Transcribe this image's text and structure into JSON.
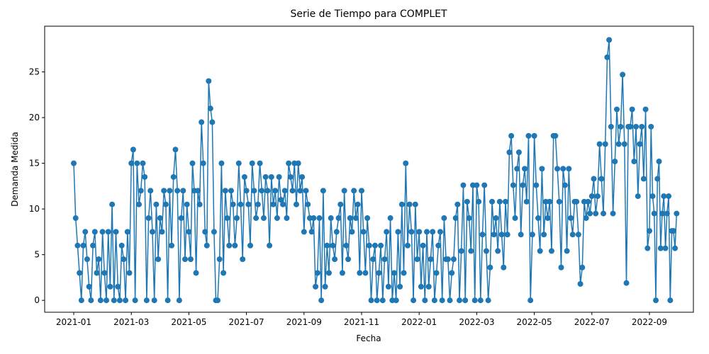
{
  "chart_data": {
    "type": "line",
    "title": "Serie de Tiempo para COMPLET",
    "x_label": "Fecha",
    "y_label": "Demanda Medida",
    "color": "#1f77b4",
    "ylim": [
      -1.3,
      30
    ],
    "yticks": [
      0,
      5,
      10,
      15,
      20,
      25
    ],
    "xticks": [
      "2021-01",
      "2021-03",
      "2021-05",
      "2021-07",
      "2021-09",
      "2021-11",
      "2022-01",
      "2022-03",
      "2022-05",
      "2022-07",
      "2022-09"
    ],
    "x": [
      "2021-01",
      "2021-02",
      "2021-03",
      "2021-04",
      "2021-05",
      "2021-06",
      "2021-07",
      "2021-08",
      "2021-09",
      "2021-10",
      "2021-11",
      "2021-12",
      "2022-01",
      "2022-02",
      "2022-03",
      "2022-04",
      "2022-05",
      "2022-06",
      "2022-07",
      "2022-08",
      "2022-09"
    ],
    "values": [
      [
        15,
        9,
        6,
        3,
        0,
        6,
        7.5,
        4.5,
        1.5,
        0,
        6,
        7.5,
        3,
        4.5,
        0
      ],
      [
        7.5,
        3,
        0,
        7.5,
        1.5,
        10.5,
        0,
        7.5,
        1.5,
        0,
        6,
        4.5,
        0,
        7.5,
        3
      ],
      [
        15,
        16.5,
        0,
        15,
        10.5,
        12,
        15,
        13.5,
        0,
        9,
        12,
        7.5,
        0,
        10.5,
        4.5
      ],
      [
        9,
        7.5,
        12,
        10.5,
        0,
        12,
        6,
        13.5,
        16.5,
        12,
        0,
        9,
        12,
        4.5,
        10.5
      ],
      [
        7.5,
        4.5,
        15,
        12,
        3,
        12,
        10.5,
        19.5,
        15,
        7.5,
        6,
        24,
        21,
        19.5,
        7.5,
        0
      ],
      [
        0,
        4.5,
        15,
        3,
        12,
        9,
        6,
        12,
        10.5,
        6,
        9,
        15,
        10.5,
        4.5,
        13.5
      ],
      [
        12,
        10.5,
        6,
        15,
        12,
        9,
        10.5,
        15,
        12,
        9,
        13.5,
        12,
        6,
        13.5,
        10.5
      ],
      [
        12,
        9,
        13.5,
        11,
        10.5,
        12,
        9,
        15,
        13.5,
        12,
        15,
        10.5,
        15,
        12,
        13.5
      ],
      [
        7.5,
        12,
        10.5,
        9,
        7.5,
        9,
        1.5,
        3,
        9,
        0,
        12,
        1.5,
        6,
        3,
        9
      ],
      [
        6,
        4.5,
        7.5,
        9,
        10.5,
        3,
        12,
        6,
        4.5,
        9,
        7.5,
        12,
        9,
        10.5,
        3
      ],
      [
        12,
        7.5,
        3,
        9,
        6,
        0,
        4.5,
        6,
        0,
        3,
        6,
        0,
        4.5,
        7.5,
        1.5
      ],
      [
        9,
        0,
        3,
        0,
        7.5,
        1.5,
        10.5,
        3,
        15,
        6,
        10.5,
        7.5,
        0,
        10.5,
        4.5
      ],
      [
        7.5,
        1.5,
        6,
        0,
        7.5,
        1.5,
        4.5,
        7.5,
        0,
        3,
        6,
        7.5,
        0,
        9,
        4.5
      ],
      [
        4.5,
        0,
        3,
        4.5,
        9,
        10.5,
        0,
        5.4,
        12.6,
        0,
        10.8,
        9,
        5.4,
        12.6,
        0
      ],
      [
        12.6,
        10.8,
        0,
        7.2,
        12.6,
        5.4,
        0,
        3.6,
        10.8,
        7.2,
        9,
        5.4,
        10.8,
        7.2,
        3.6
      ],
      [
        10.8,
        7.2,
        16.2,
        18,
        12.6,
        9,
        14.4,
        16.2,
        7.2,
        12.6,
        14.4,
        10.8,
        18,
        0,
        7.2
      ],
      [
        18,
        12.6,
        9,
        5.4,
        14.4,
        7.2,
        10.8,
        9,
        10.8,
        5.4,
        18,
        18,
        14.4,
        10.8,
        3.6
      ],
      [
        14.4,
        12.6,
        5.4,
        14.4,
        9,
        7.2,
        10.8,
        10.8,
        7.2,
        1.8,
        3.6,
        10.8,
        9,
        10.8,
        9.5
      ],
      [
        11.4,
        13.3,
        9.5,
        11.4,
        17.1,
        13.3,
        9.5,
        17.1,
        26.6,
        28.5,
        19,
        9.5,
        15.2,
        20.9,
        17.1
      ],
      [
        19,
        24.7,
        17.1,
        1.9,
        19,
        19,
        20.9,
        15.2,
        19,
        11.4,
        17.1,
        19,
        13.3,
        20.9,
        5.7
      ],
      [
        7.6,
        19,
        11.4,
        9.5,
        0,
        13.3,
        15.2,
        5.7,
        9.5,
        11.4,
        5.7,
        9.5,
        11.4,
        0,
        7.6,
        7.6,
        5.7,
        9.5
      ]
    ]
  }
}
